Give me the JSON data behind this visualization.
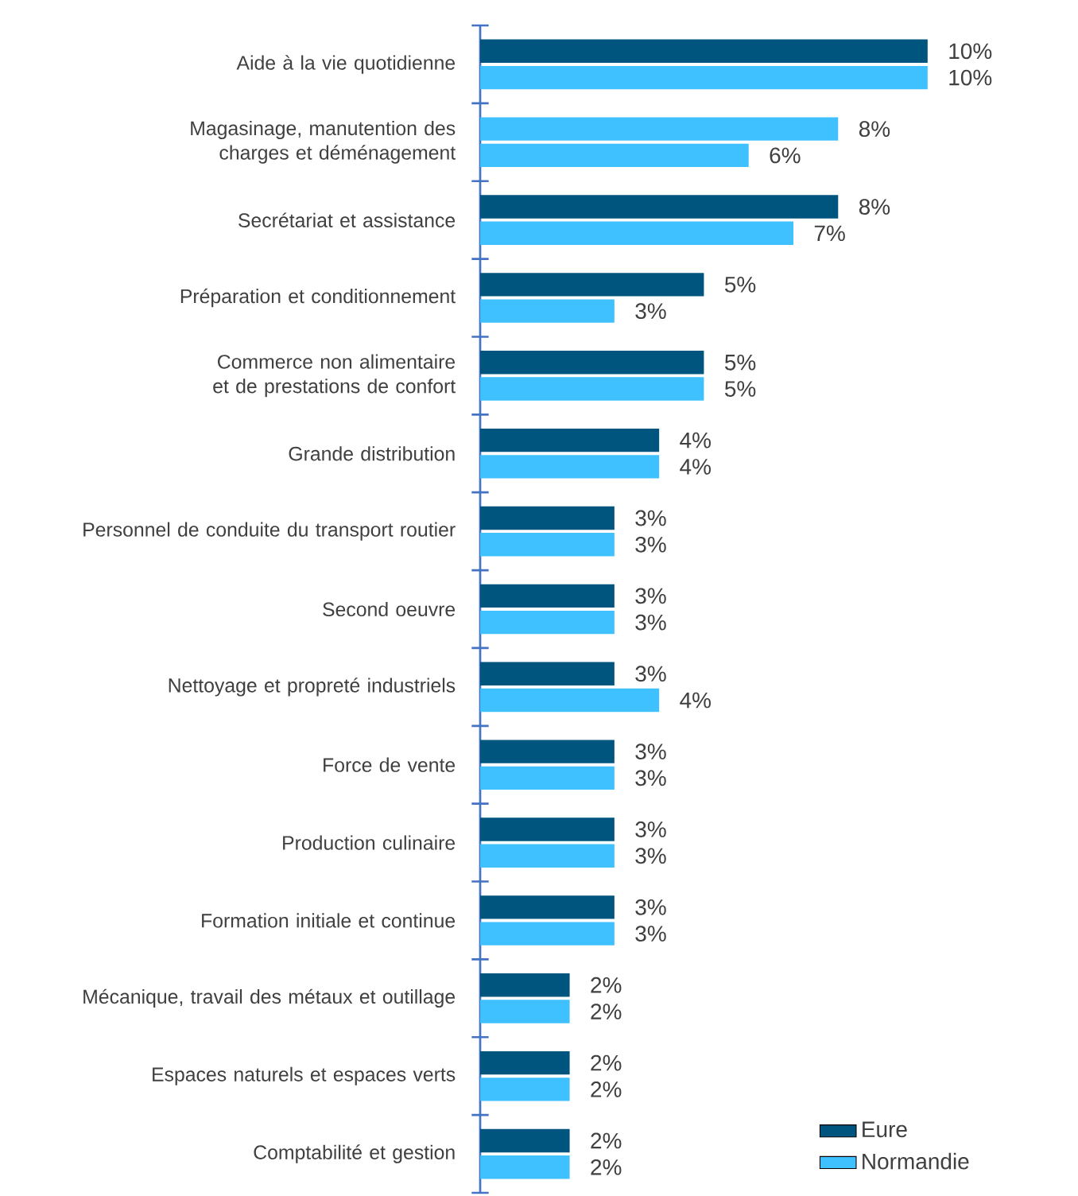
{
  "chart_data": {
    "type": "bar",
    "orientation": "horizontal",
    "categories": [
      "Aide à la vie quotidienne",
      "Magasinage, manutention des charges et déménagement",
      "Secrétariat et assistance",
      "Préparation et conditionnement",
      "Commerce non alimentaire et de prestations de confort",
      "Grande distribution",
      "Personnel de conduite du transport routier",
      "Second oeuvre",
      "Nettoyage et propreté industriels",
      "Force de vente",
      "Production culinaire",
      "Formation initiale et continue",
      "Mécanique, travail des métaux et outillage",
      "Espaces naturels et espaces verts",
      "Comptabilité et gestion"
    ],
    "series": [
      {
        "name": "Eure",
        "color": "#00557f",
        "colors": [
          "#00557f",
          "#3fc0ff",
          "#00557f",
          "#00557f",
          "#00557f",
          "#00557f",
          "#00557f",
          "#00557f",
          "#00557f",
          "#00557f",
          "#00557f",
          "#00557f",
          "#00557f",
          "#00557f",
          "#00557f"
        ],
        "values": [
          10,
          8,
          8,
          5,
          5,
          4,
          3,
          3,
          3,
          3,
          3,
          3,
          2,
          2,
          2
        ],
        "value_labels": [
          "10%",
          "8%",
          "8%",
          "5%",
          "5%",
          "4%",
          "3%",
          "3%",
          "3%",
          "3%",
          "3%",
          "3%",
          "2%",
          "2%",
          "2%"
        ]
      },
      {
        "name": "Normandie",
        "color": "#3fc0ff",
        "values": [
          10,
          6,
          7,
          3,
          5,
          4,
          3,
          3,
          4,
          3,
          3,
          3,
          2,
          2,
          2
        ],
        "value_labels": [
          "10%",
          "6%",
          "7%",
          "3%",
          "5%",
          "4%",
          "3%",
          "3%",
          "4%",
          "3%",
          "3%",
          "3%",
          "2%",
          "2%",
          "2%"
        ]
      }
    ],
    "legend": "bottom right"
  }
}
